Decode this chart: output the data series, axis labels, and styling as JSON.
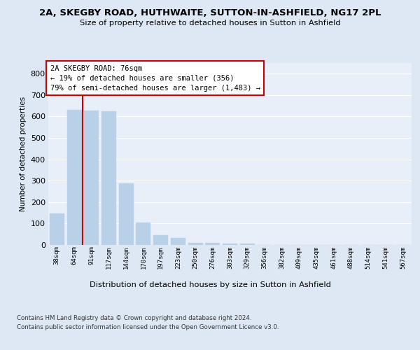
{
  "title": "2A, SKEGBY ROAD, HUTHWAITE, SUTTON-IN-ASHFIELD, NG17 2PL",
  "subtitle": "Size of property relative to detached houses in Sutton in Ashfield",
  "xlabel": "Distribution of detached houses by size in Sutton in Ashfield",
  "ylabel": "Number of detached properties",
  "categories": [
    "38sqm",
    "64sqm",
    "91sqm",
    "117sqm",
    "144sqm",
    "170sqm",
    "197sqm",
    "223sqm",
    "250sqm",
    "276sqm",
    "303sqm",
    "329sqm",
    "356sqm",
    "382sqm",
    "409sqm",
    "435sqm",
    "461sqm",
    "488sqm",
    "514sqm",
    "541sqm",
    "567sqm"
  ],
  "values": [
    148,
    630,
    628,
    625,
    287,
    103,
    47,
    32,
    11,
    11,
    6,
    5,
    1,
    0,
    0,
    1,
    0,
    1,
    0,
    0,
    1
  ],
  "bar_color": "#b8d0e8",
  "bar_edge_color": "#b8d0e8",
  "vline_x": 1.5,
  "vline_color": "#cc0000",
  "annotation_text": "2A SKEGBY ROAD: 76sqm\n← 19% of detached houses are smaller (356)\n79% of semi-detached houses are larger (1,483) →",
  "annotation_box_color": "#ffffff",
  "annotation_box_edge": "#cc0000",
  "background_color": "#dde8f4",
  "plot_bg_color": "#e8eff8",
  "grid_color": "#ffffff",
  "footer_line1": "Contains HM Land Registry data © Crown copyright and database right 2024.",
  "footer_line2": "Contains public sector information licensed under the Open Government Licence v3.0.",
  "ylim": [
    0,
    850
  ],
  "yticks": [
    0,
    100,
    200,
    300,
    400,
    500,
    600,
    700,
    800
  ]
}
